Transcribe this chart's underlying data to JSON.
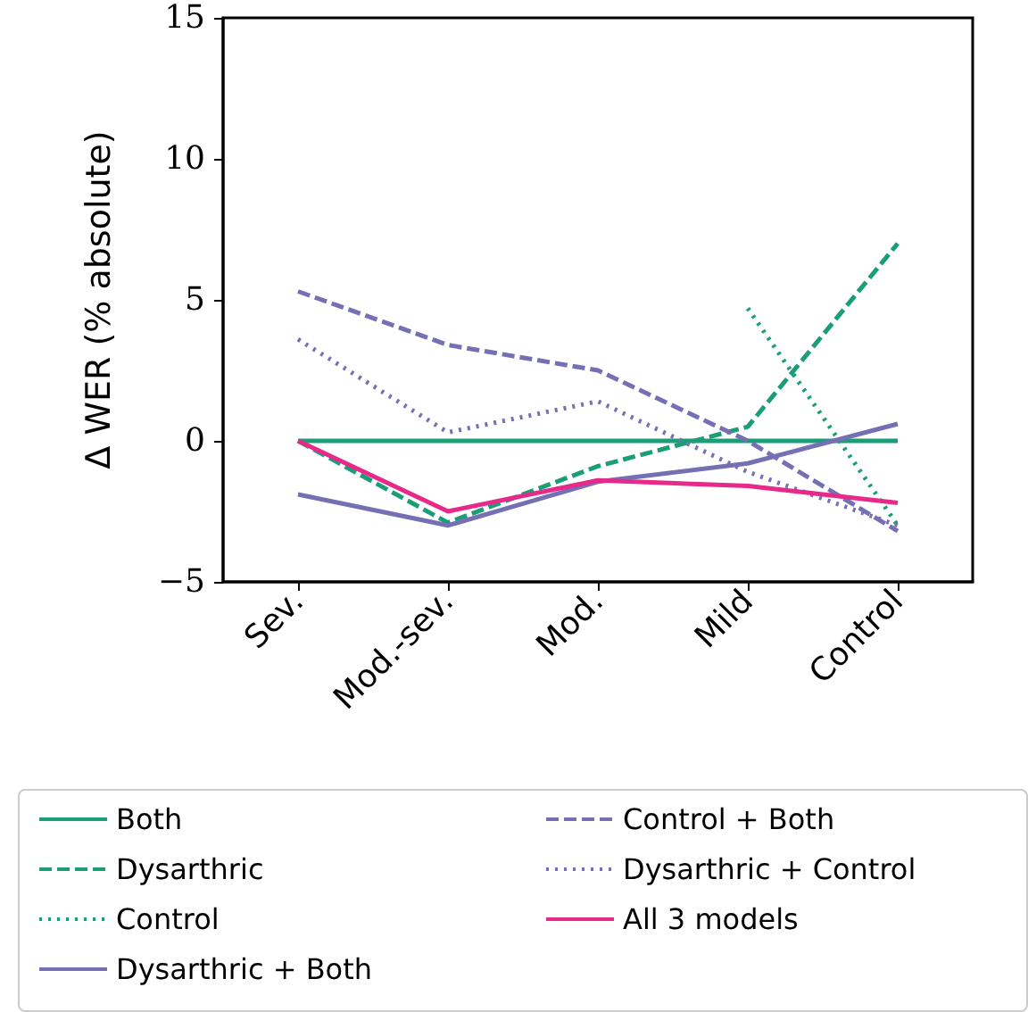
{
  "chart_data": {
    "type": "line",
    "ylabel": "Δ WER (% absolute)",
    "categories": [
      "Sev.",
      "Mod.-sev.",
      "Mod.",
      "Mild",
      "Control"
    ],
    "ylim": [
      -5,
      15
    ],
    "yticks": [
      {
        "value": -5,
        "label": "−5"
      },
      0,
      5,
      10,
      15
    ],
    "grid": false,
    "legend": "bottom",
    "marker": "none",
    "series": [
      {
        "name": "Both",
        "color": "#1b9e77",
        "line_style": "solid",
        "values": [
          0,
          0,
          0,
          0,
          0
        ]
      },
      {
        "name": "Dysarthric",
        "color": "#1b9e77",
        "line_style": "dashed",
        "values": [
          0,
          -2.9,
          -0.9,
          0.5,
          7.0
        ]
      },
      {
        "name": "Control",
        "color": "#1b9e77",
        "line_style": "dotted",
        "values": [
          null,
          null,
          null,
          4.7,
          -3.0
        ]
      },
      {
        "name": "Dysarthric + Both",
        "color": "#7570b3",
        "line_style": "solid",
        "values": [
          -1.9,
          -3.0,
          -1.45,
          -0.8,
          0.6
        ]
      },
      {
        "name": "Control + Both",
        "color": "#7570b3",
        "line_style": "dashed",
        "values": [
          5.3,
          3.4,
          2.5,
          0,
          -3.2
        ]
      },
      {
        "name": "Dysarthric + Control",
        "color": "#7570b3",
        "line_style": "dotted",
        "values": [
          3.6,
          0.3,
          1.4,
          -1.1,
          -3.0
        ]
      },
      {
        "name": "All 3 models",
        "color": "#e7298a",
        "line_style": "solid",
        "values": [
          0,
          -2.5,
          -1.4,
          -1.6,
          -2.2
        ]
      }
    ]
  }
}
